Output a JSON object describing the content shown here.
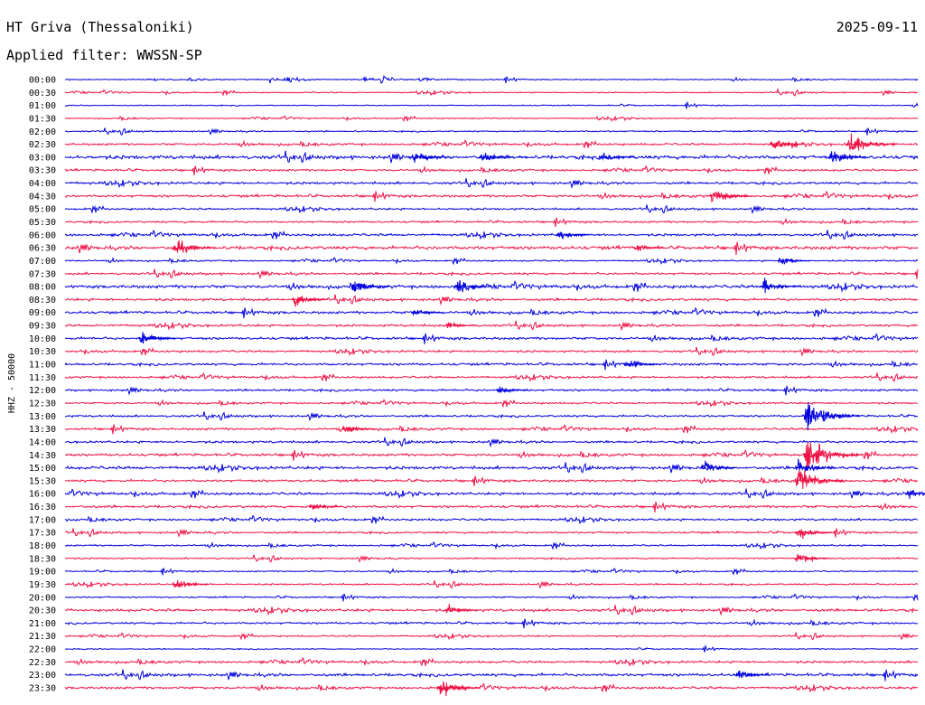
{
  "header": {
    "station": "HT Griva (Thessaloniki)",
    "date": "2025-09-11",
    "filter": "Applied filter: WWSSN-SP"
  },
  "chart_data": {
    "type": "line",
    "title": "HT Griva (Thessaloniki)",
    "subtitle": "Applied filter: WWSSN-SP",
    "ylabel": "HHZ - 50000",
    "colors": {
      "a": "#0000dd",
      "b": "#ee1144"
    },
    "traces": [
      {
        "time": "00:00",
        "color": "a",
        "level": 0.12
      },
      {
        "time": "00:30",
        "color": "b",
        "level": 0.12
      },
      {
        "time": "01:00",
        "color": "a",
        "level": 0.1
      },
      {
        "time": "01:30",
        "color": "b",
        "level": 0.12
      },
      {
        "time": "02:00",
        "color": "a",
        "level": 0.2
      },
      {
        "time": "02:30",
        "color": "b",
        "level": 0.45
      },
      {
        "time": "03:00",
        "color": "a",
        "level": 0.95
      },
      {
        "time": "03:30",
        "color": "b",
        "level": 0.45
      },
      {
        "time": "04:00",
        "color": "a",
        "level": 0.55
      },
      {
        "time": "04:30",
        "color": "b",
        "level": 0.6
      },
      {
        "time": "05:00",
        "color": "a",
        "level": 0.4
      },
      {
        "time": "05:30",
        "color": "b",
        "level": 0.4
      },
      {
        "time": "06:00",
        "color": "a",
        "level": 0.55
      },
      {
        "time": "06:30",
        "color": "b",
        "level": 0.85
      },
      {
        "time": "07:00",
        "color": "a",
        "level": 0.25
      },
      {
        "time": "07:30",
        "color": "b",
        "level": 0.5
      },
      {
        "time": "08:00",
        "color": "a",
        "level": 0.8
      },
      {
        "time": "08:30",
        "color": "b",
        "level": 0.6
      },
      {
        "time": "09:00",
        "color": "a",
        "level": 0.6
      },
      {
        "time": "09:30",
        "color": "b",
        "level": 0.5
      },
      {
        "time": "10:00",
        "color": "a",
        "level": 0.6
      },
      {
        "time": "10:30",
        "color": "b",
        "level": 0.45
      },
      {
        "time": "11:00",
        "color": "a",
        "level": 0.55
      },
      {
        "time": "11:30",
        "color": "b",
        "level": 0.45
      },
      {
        "time": "12:00",
        "color": "a",
        "level": 0.45
      },
      {
        "time": "12:30",
        "color": "b",
        "level": 0.35
      },
      {
        "time": "13:00",
        "color": "a",
        "level": 0.45
      },
      {
        "time": "13:30",
        "color": "b",
        "level": 0.5
      },
      {
        "time": "14:00",
        "color": "a",
        "level": 0.5
      },
      {
        "time": "14:30",
        "color": "b",
        "level": 0.6
      },
      {
        "time": "15:00",
        "color": "a",
        "level": 0.75
      },
      {
        "time": "15:30",
        "color": "b",
        "level": 0.55
      },
      {
        "time": "16:00",
        "color": "a",
        "level": 0.6
      },
      {
        "time": "16:30",
        "color": "b",
        "level": 0.6
      },
      {
        "time": "17:00",
        "color": "a",
        "level": 0.45
      },
      {
        "time": "17:30",
        "color": "b",
        "level": 0.4
      },
      {
        "time": "18:00",
        "color": "a",
        "level": 0.3
      },
      {
        "time": "18:30",
        "color": "b",
        "level": 0.25
      },
      {
        "time": "19:00",
        "color": "a",
        "level": 0.2
      },
      {
        "time": "19:30",
        "color": "b",
        "level": 0.3
      },
      {
        "time": "20:00",
        "color": "a",
        "level": 0.25
      },
      {
        "time": "20:30",
        "color": "b",
        "level": 0.65
      },
      {
        "time": "21:00",
        "color": "a",
        "level": 0.45
      },
      {
        "time": "21:30",
        "color": "b",
        "level": 0.25
      },
      {
        "time": "22:00",
        "color": "a",
        "level": 0.1
      },
      {
        "time": "22:30",
        "color": "b",
        "level": 0.5
      },
      {
        "time": "23:00",
        "color": "a",
        "level": 0.7
      },
      {
        "time": "23:30",
        "color": "b",
        "level": 0.55
      }
    ],
    "events": [
      {
        "time": "02:30",
        "at": 0.92,
        "amp": 22
      },
      {
        "time": "02:30",
        "at": 0.83,
        "amp": 10
      },
      {
        "time": "03:00",
        "at": 0.41,
        "amp": 10
      },
      {
        "time": "03:00",
        "at": 0.49,
        "amp": 9
      },
      {
        "time": "03:00",
        "at": 0.63,
        "amp": 10
      },
      {
        "time": "03:00",
        "at": 0.9,
        "amp": 12
      },
      {
        "time": "04:30",
        "at": 0.76,
        "amp": 14
      },
      {
        "time": "06:00",
        "at": 0.58,
        "amp": 9
      },
      {
        "time": "06:30",
        "at": 0.13,
        "amp": 14
      },
      {
        "time": "06:30",
        "at": 0.67,
        "amp": 7
      },
      {
        "time": "07:00",
        "at": 0.84,
        "amp": 8
      },
      {
        "time": "08:00",
        "at": 0.34,
        "amp": 12
      },
      {
        "time": "08:00",
        "at": 0.46,
        "amp": 12
      },
      {
        "time": "08:00",
        "at": 0.82,
        "amp": 12
      },
      {
        "time": "08:30",
        "at": 0.27,
        "amp": 11
      },
      {
        "time": "09:00",
        "at": 0.41,
        "amp": 8
      },
      {
        "time": "09:30",
        "at": 0.45,
        "amp": 7
      },
      {
        "time": "10:00",
        "at": 0.09,
        "amp": 12
      },
      {
        "time": "11:00",
        "at": 0.66,
        "amp": 11
      },
      {
        "time": "12:00",
        "at": 0.51,
        "amp": 7
      },
      {
        "time": "13:00",
        "at": 0.87,
        "amp": 28
      },
      {
        "time": "13:30",
        "at": 0.33,
        "amp": 8
      },
      {
        "time": "14:30",
        "at": 0.87,
        "amp": 30
      },
      {
        "time": "15:00",
        "at": 0.86,
        "amp": 14
      },
      {
        "time": "15:00",
        "at": 0.75,
        "amp": 10
      },
      {
        "time": "15:30",
        "at": 0.86,
        "amp": 22
      },
      {
        "time": "16:00",
        "at": 0.99,
        "amp": 8
      },
      {
        "time": "16:30",
        "at": 0.29,
        "amp": 8
      },
      {
        "time": "17:30",
        "at": 0.86,
        "amp": 12
      },
      {
        "time": "18:30",
        "at": 0.86,
        "amp": 10
      },
      {
        "time": "19:30",
        "at": 0.13,
        "amp": 11
      },
      {
        "time": "20:30",
        "at": 0.45,
        "amp": 8
      },
      {
        "time": "23:00",
        "at": 0.79,
        "amp": 8
      },
      {
        "time": "23:30",
        "at": 0.44,
        "amp": 16
      }
    ]
  }
}
